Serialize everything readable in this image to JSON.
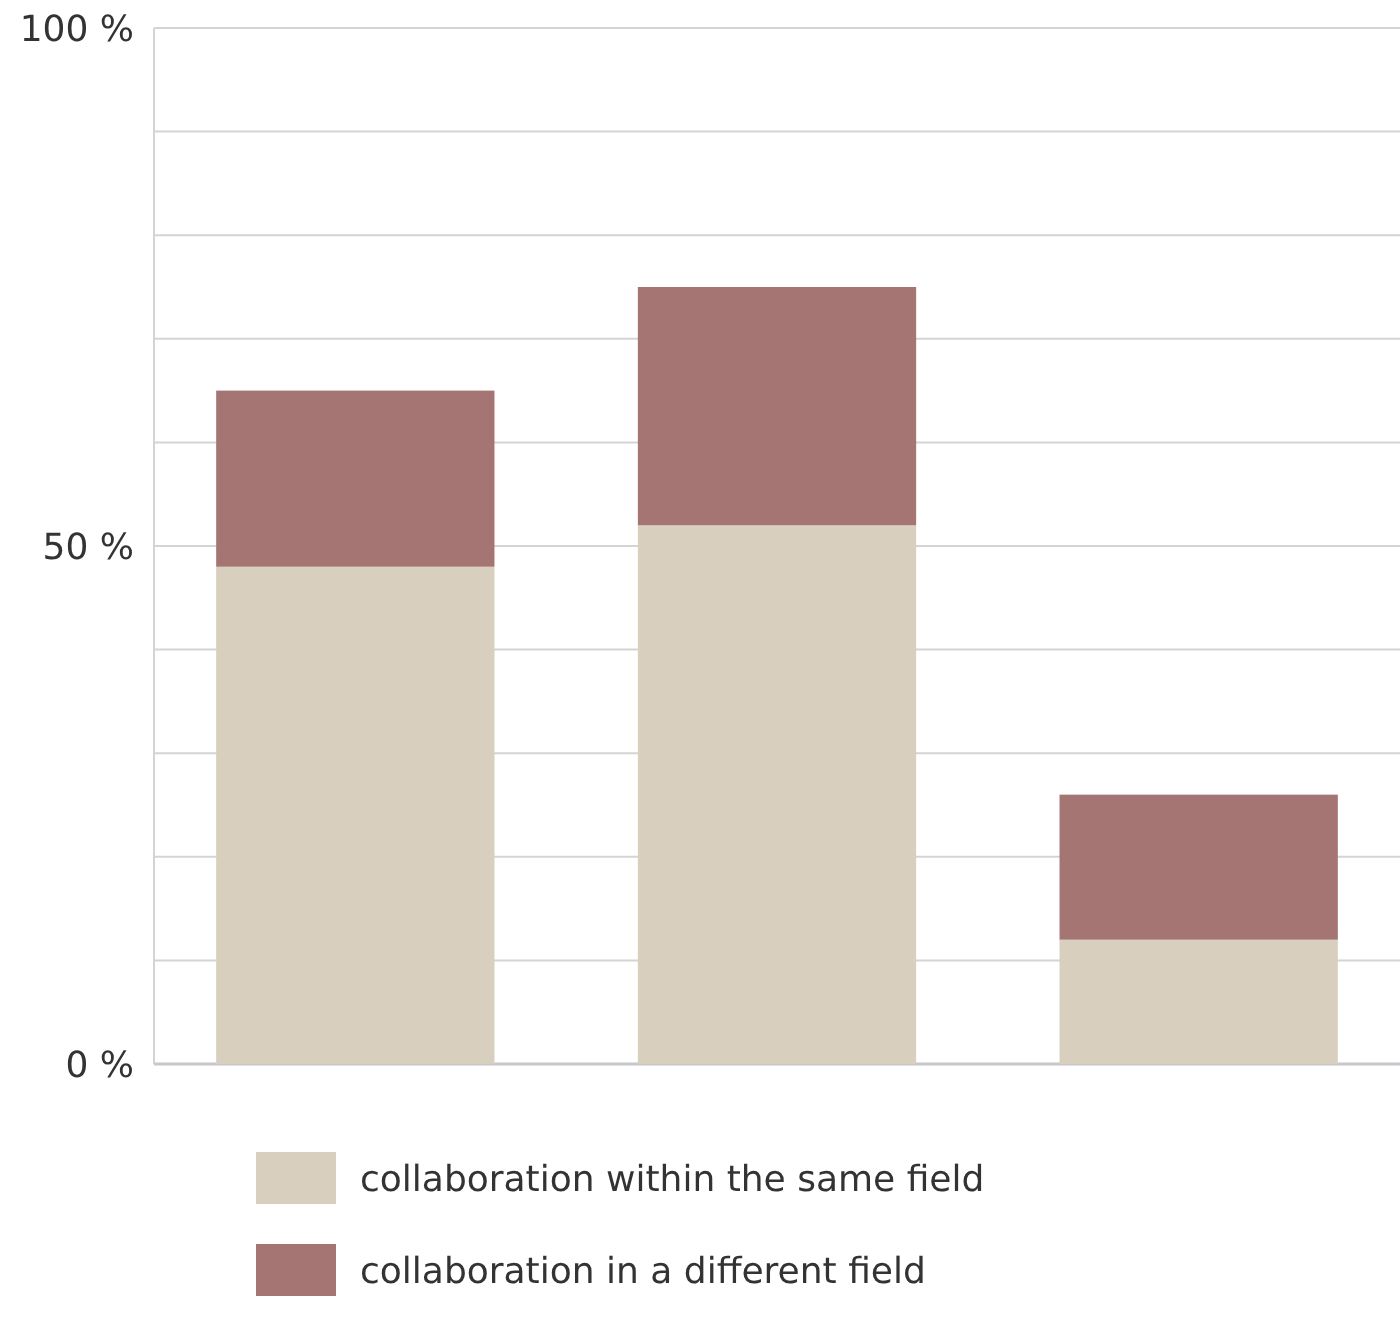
{
  "chart_data": {
    "type": "bar",
    "stacked": true,
    "categories": [
      null,
      null,
      null
    ],
    "series": [
      {
        "name": "collaboration within the same field",
        "color": "#d8cfbf",
        "values": [
          48,
          52,
          12
        ]
      },
      {
        "name": "collaboration in a different field",
        "color": "#a57573",
        "values": [
          17,
          23,
          14
        ]
      }
    ],
    "ylim": [
      0,
      100
    ],
    "yticks": [
      {
        "value": 0,
        "label": "0 %"
      },
      {
        "value": 10,
        "label": null
      },
      {
        "value": 20,
        "label": null
      },
      {
        "value": 30,
        "label": null
      },
      {
        "value": 40,
        "label": null
      },
      {
        "value": 50,
        "label": "50 %"
      },
      {
        "value": 60,
        "label": null
      },
      {
        "value": 70,
        "label": null
      },
      {
        "value": 80,
        "label": null
      },
      {
        "value": 90,
        "label": null
      },
      {
        "value": 100,
        "label": "100 %"
      }
    ],
    "grid": "y",
    "legend": "bottom"
  }
}
